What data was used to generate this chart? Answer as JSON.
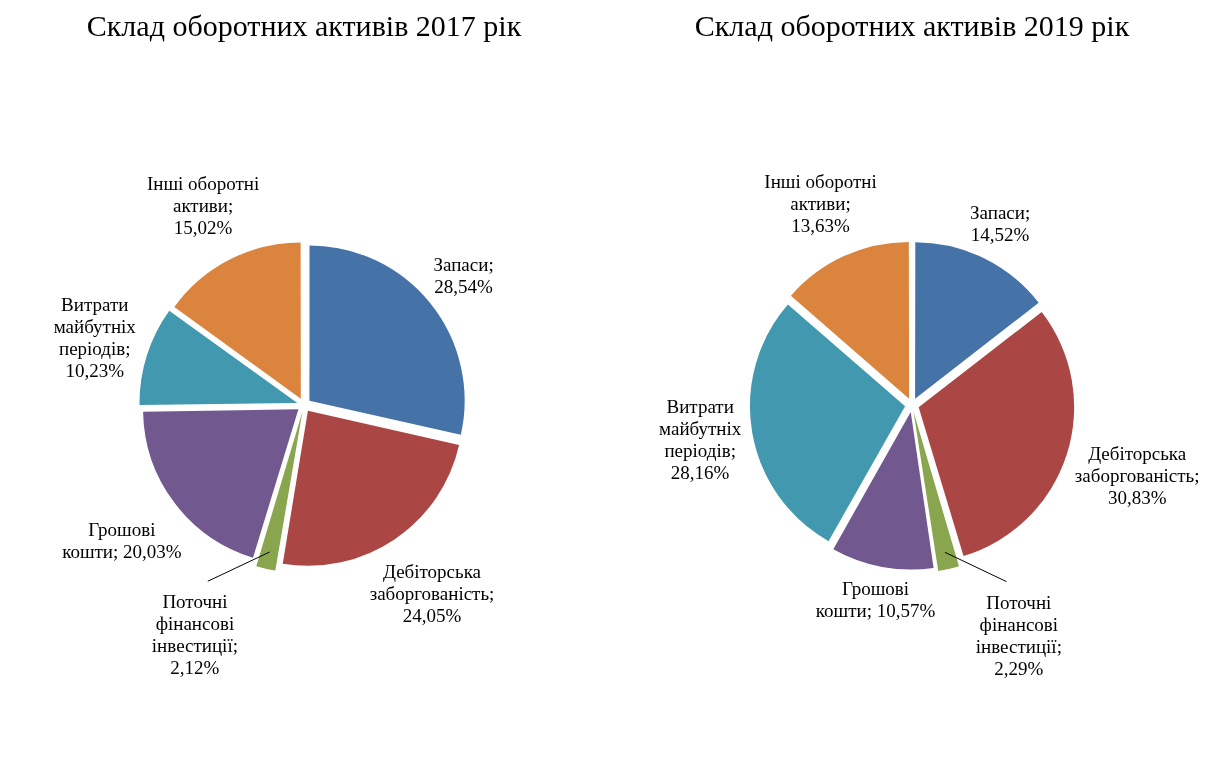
{
  "chart_data": [
    {
      "type": "pie",
      "title": "Склад оборотних активів 2017 рік",
      "categories": [
        "Запаси",
        "Дебіторська заборгованість",
        "Поточні фінансові інвестиції",
        "Грошові кошти",
        "Витрати майбутніх періодів",
        "Інші оборотні активи"
      ],
      "values": [
        28.54,
        24.05,
        2.12,
        20.03,
        10.23,
        15.02
      ],
      "value_labels": [
        "; 28,54%",
        "; 24,05%",
        "; 2,12%",
        "; 20,03%",
        "; 10,23%",
        "; 15,02%"
      ],
      "colors": [
        "#4572a7",
        "#aa4643",
        "#89a54e",
        "#71588f",
        "#4198af",
        "#db843d"
      ],
      "legend": false
    },
    {
      "type": "pie",
      "title": "Склад оборотних активів 2019 рік",
      "categories": [
        "Запаси",
        "Дебіторська заборгованість",
        "Поточні фінансові інвестиції",
        "Грошові кошти",
        "Витрати майбутніх періодів",
        "Інші оборотні активи"
      ],
      "values": [
        14.52,
        30.83,
        2.29,
        10.57,
        28.16,
        13.63
      ],
      "value_labels": [
        "; 14,52%",
        "; 30,83%",
        "; 2,29%",
        "; 10,57%",
        "; 28,16%",
        "; 13,63%"
      ],
      "colors": [
        "#4572a7",
        "#aa4643",
        "#89a54e",
        "#71588f",
        "#4198af",
        "#db843d"
      ],
      "legend": false
    }
  ]
}
